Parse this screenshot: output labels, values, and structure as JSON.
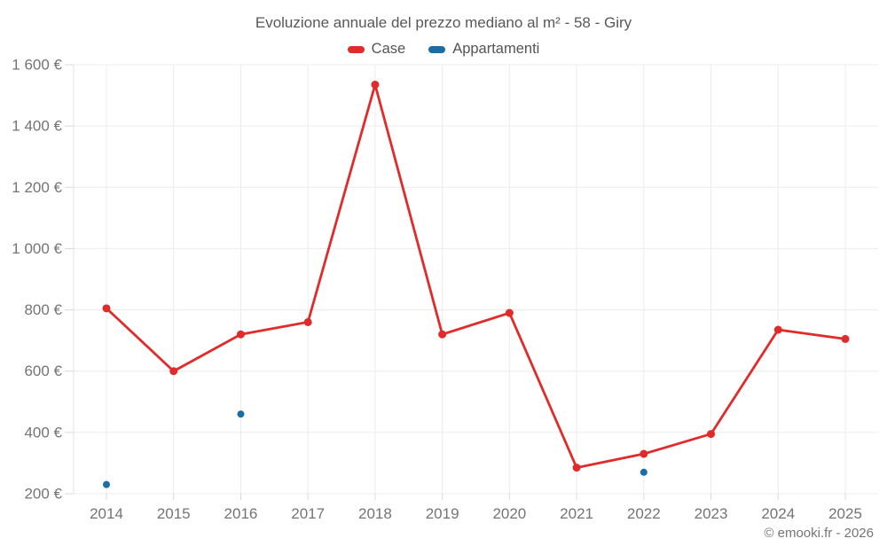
{
  "title": "Evoluzione annuale del prezzo mediano al m² - 58 - Giry",
  "footer_credit": "© emooki.fr - 2026",
  "colors": {
    "grid": "#ececec",
    "axis_line": "#e3e3e3",
    "tick": "#d9d9d9",
    "axis_text": "#747474",
    "title_text": "#58585a",
    "legend_text": "#545454",
    "footer_text": "#757575"
  },
  "chart_data": {
    "type": "line",
    "title": "Evoluzione annuale del prezzo mediano al m² - 58 - Giry",
    "categories": [
      "2014",
      "2015",
      "2016",
      "2017",
      "2018",
      "2019",
      "2020",
      "2021",
      "2022",
      "2023",
      "2024",
      "2025"
    ],
    "series": [
      {
        "name": "Case",
        "color": "#e12b2a",
        "mode": "line+markers",
        "values": [
          805,
          600,
          720,
          760,
          1535,
          720,
          790,
          285,
          330,
          395,
          735,
          705
        ]
      },
      {
        "name": "Appartamenti",
        "color": "#1c6ca6",
        "mode": "markers",
        "values": [
          230,
          null,
          460,
          null,
          null,
          null,
          null,
          null,
          270,
          null,
          null,
          null
        ]
      }
    ],
    "ylim": [
      200,
      1600
    ],
    "yticks": [
      200,
      400,
      600,
      800,
      1000,
      1200,
      1400,
      1600
    ],
    "ytick_labels": [
      "200 €",
      "400 €",
      "600 €",
      "800 €",
      "1 000 €",
      "1 200 €",
      "1 400 €",
      "1 600 €"
    ],
    "currency_suffix": "€",
    "grid": true,
    "legend_position": "top"
  }
}
